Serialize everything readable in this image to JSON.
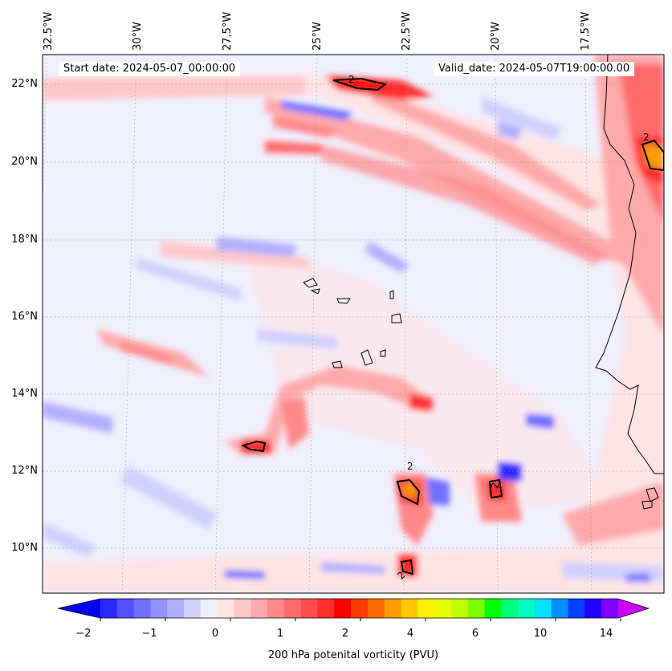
{
  "map": {
    "start_label": "Start date: 2024-05-07_00:00:00",
    "valid_label": "Valid_date: 2024-05-07T19:00:00.00",
    "longitude_labels": [
      "32.5°W",
      "30°W",
      "27.5°W",
      "25°W",
      "22.5°W",
      "20°W",
      "17.5°W"
    ],
    "latitude_labels": [
      "22°N",
      "20°N",
      "18°N",
      "16°N",
      "14°N",
      "12°N",
      "10°N"
    ],
    "contour_label": "2",
    "colorbar": {
      "label": "200 hPa potenital vorticity (PVU)",
      "tick_labels": [
        "−2",
        "−1",
        "0",
        "1",
        "2",
        "4",
        "6",
        "10",
        "14"
      ],
      "colors": [
        "#0000ff",
        "#2a2aff",
        "#5050ff",
        "#7070ff",
        "#9090ff",
        "#b0b0ff",
        "#d0d0ff",
        "#eeeeff",
        "#ffe4e4",
        "#ffc8c8",
        "#ffaaaa",
        "#ff8888",
        "#ff6a6a",
        "#ff4c4c",
        "#ff2e2e",
        "#ff0000",
        "#ff3a00",
        "#ff6a00",
        "#ff9a00",
        "#ffc800",
        "#fff000",
        "#e4ff00",
        "#c0ff00",
        "#80ff00",
        "#00ff00",
        "#00ff7a",
        "#00ffc0",
        "#00e0ff",
        "#0090ff",
        "#0040ff",
        "#2000ff",
        "#8000ff",
        "#d000ff"
      ]
    }
  }
}
